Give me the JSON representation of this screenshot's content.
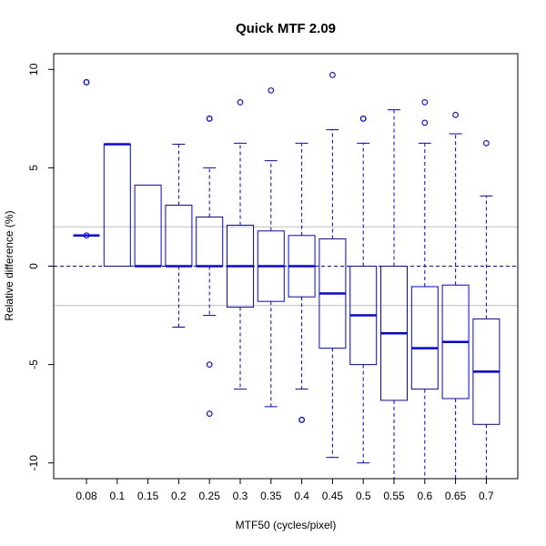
{
  "chart_data": {
    "type": "boxplot",
    "title": "Quick MTF 2.09",
    "xlabel": "MTF50 (cycles/pixel)",
    "ylabel": "Relative difference (%)",
    "ylim": [
      -10.8,
      10.8
    ],
    "y_ticks": [
      -10,
      -5,
      0,
      5,
      10
    ],
    "reference_lines": {
      "dashed": [
        0
      ],
      "solid_gray": [
        2,
        -2
      ]
    },
    "colors": {
      "box": "#0000ff",
      "reference_dashed": "#0000ff",
      "reference_gray": "#bebebe",
      "axis": "#000000"
    },
    "categories": [
      "0.08",
      "0.1",
      "0.15",
      "0.2",
      "0.25",
      "0.3",
      "0.35",
      "0.4",
      "0.45",
      "0.5",
      "0.55",
      "0.6",
      "0.65",
      "0.7"
    ],
    "boxes": [
      {
        "category": "0.08",
        "whisker_low": 1.56,
        "q1": 1.56,
        "median": 1.56,
        "q3": 1.56,
        "whisker_high": 1.56,
        "outliers": [
          9.35,
          9.35,
          1.56
        ]
      },
      {
        "category": "0.1",
        "whisker_low": 0,
        "q1": 0,
        "median": 6.2,
        "q3": 6.2,
        "whisker_high": 6.2,
        "outliers": []
      },
      {
        "category": "0.15",
        "whisker_low": 0,
        "q1": 0,
        "median": 0,
        "q3": 4.12,
        "whisker_high": 4.12,
        "outliers": []
      },
      {
        "category": "0.2",
        "whisker_low": -3.1,
        "q1": 0,
        "median": 0,
        "q3": 3.1,
        "whisker_high": 6.2,
        "outliers": []
      },
      {
        "category": "0.25",
        "whisker_low": -2.5,
        "q1": 0,
        "median": 0,
        "q3": 2.5,
        "whisker_high": 5.0,
        "outliers": [
          7.5,
          7.5,
          -5.0,
          -7.5
        ]
      },
      {
        "category": "0.3",
        "whisker_low": -6.25,
        "q1": -2.08,
        "median": 0,
        "q3": 2.08,
        "whisker_high": 6.25,
        "outliers": [
          8.33
        ]
      },
      {
        "category": "0.35",
        "whisker_low": -7.14,
        "q1": -1.79,
        "median": 0,
        "q3": 1.79,
        "whisker_high": 5.36,
        "outliers": [
          8.93
        ]
      },
      {
        "category": "0.4",
        "whisker_low": -6.25,
        "q1": -1.56,
        "median": 0,
        "q3": 1.56,
        "whisker_high": 6.25,
        "outliers": [
          -7.81,
          -7.81
        ]
      },
      {
        "category": "0.45",
        "whisker_low": -9.72,
        "q1": -4.17,
        "median": -1.39,
        "q3": 1.39,
        "whisker_high": 6.94,
        "outliers": [
          9.72
        ]
      },
      {
        "category": "0.5",
        "whisker_low": -10.0,
        "q1": -5.0,
        "median": -2.5,
        "q3": 0,
        "whisker_high": 6.25,
        "outliers": [
          7.5,
          7.5
        ]
      },
      {
        "category": "0.55",
        "whisker_low": -11.0,
        "q1": -6.82,
        "median": -3.41,
        "q3": 0,
        "whisker_high": 7.95,
        "outliers": []
      },
      {
        "category": "0.6",
        "whisker_low": -11.0,
        "q1": -6.25,
        "median": -4.17,
        "q3": -1.04,
        "whisker_high": 6.25,
        "outliers": [
          8.33,
          7.29
        ]
      },
      {
        "category": "0.65",
        "whisker_low": -11.0,
        "q1": -6.73,
        "median": -3.85,
        "q3": -0.96,
        "whisker_high": 6.73,
        "outliers": [
          7.69
        ]
      },
      {
        "category": "0.7",
        "whisker_low": -11.0,
        "q1": -8.04,
        "median": -5.36,
        "q3": -2.68,
        "whisker_high": 3.57,
        "outliers": [
          6.25
        ]
      }
    ]
  }
}
